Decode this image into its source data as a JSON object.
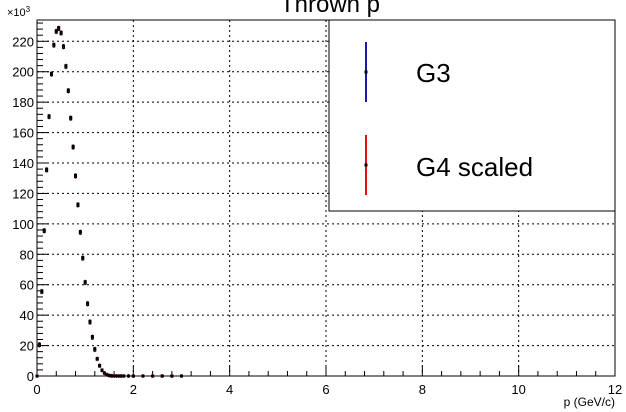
{
  "chart_data": {
    "type": "scatter",
    "title": "Thrown p",
    "xlabel": "p (GeV/c)",
    "ylabel": "",
    "xlim": [
      0,
      12
    ],
    "ylim": [
      0,
      234000
    ],
    "grid": true,
    "y_exponent_label": "×10",
    "y_exponent_power": "3",
    "x_ticks": [
      "0",
      "2",
      "4",
      "6",
      "8",
      "10",
      "12"
    ],
    "y_ticks": [
      "0",
      "20",
      "40",
      "60",
      "80",
      "100",
      "120",
      "140",
      "160",
      "180",
      "200",
      "220"
    ],
    "legend_position": "top-right",
    "series": [
      {
        "name": "G3",
        "color": "#1a1aa6",
        "x": [
          0.0,
          0.05,
          0.1,
          0.15,
          0.2,
          0.25,
          0.3,
          0.35,
          0.4,
          0.45,
          0.5,
          0.55,
          0.6,
          0.65,
          0.7,
          0.75,
          0.8,
          0.85,
          0.9,
          0.95,
          1.0,
          1.05,
          1.1,
          1.15,
          1.2,
          1.25,
          1.3,
          1.35,
          1.4,
          1.45,
          1.5,
          1.55,
          1.6,
          1.65,
          1.7,
          1.75,
          1.8,
          1.9,
          2.0,
          2.2,
          2.4,
          2.6,
          2.8,
          3.0
        ],
        "y": [
          0,
          20000,
          55000,
          95000,
          135000,
          170000,
          198000,
          217000,
          226000,
          228000,
          225000,
          216000,
          203000,
          187000,
          169000,
          150000,
          131000,
          112000,
          94000,
          77000,
          61000,
          47000,
          35000,
          25000,
          17000,
          11000,
          6500,
          3600,
          1800,
          800,
          300,
          100,
          40,
          10,
          0,
          0,
          0,
          0,
          0,
          0,
          0,
          0,
          0,
          0
        ]
      },
      {
        "name": "G4 scaled",
        "color": "#e01010",
        "x": [
          0.0,
          0.05,
          0.1,
          0.15,
          0.2,
          0.25,
          0.3,
          0.35,
          0.4,
          0.45,
          0.5,
          0.55,
          0.6,
          0.65,
          0.7,
          0.75,
          0.8,
          0.85,
          0.9,
          0.95,
          1.0,
          1.05,
          1.1,
          1.15,
          1.2,
          1.25,
          1.3,
          1.35,
          1.4,
          1.45,
          1.5,
          1.55,
          1.6,
          1.65,
          1.7,
          1.75,
          1.8,
          1.9,
          2.0,
          2.2,
          2.4,
          2.6,
          2.8,
          3.0
        ],
        "y": [
          0,
          21000,
          56000,
          96000,
          136000,
          171000,
          199000,
          218000,
          227000,
          229000,
          226000,
          217000,
          204000,
          188000,
          170000,
          151000,
          132000,
          113000,
          95000,
          78000,
          62000,
          48000,
          36000,
          26000,
          18000,
          11500,
          7000,
          3900,
          2000,
          900,
          350,
          120,
          50,
          15,
          0,
          0,
          0,
          0,
          0,
          0,
          0,
          0,
          0,
          0
        ]
      }
    ]
  }
}
